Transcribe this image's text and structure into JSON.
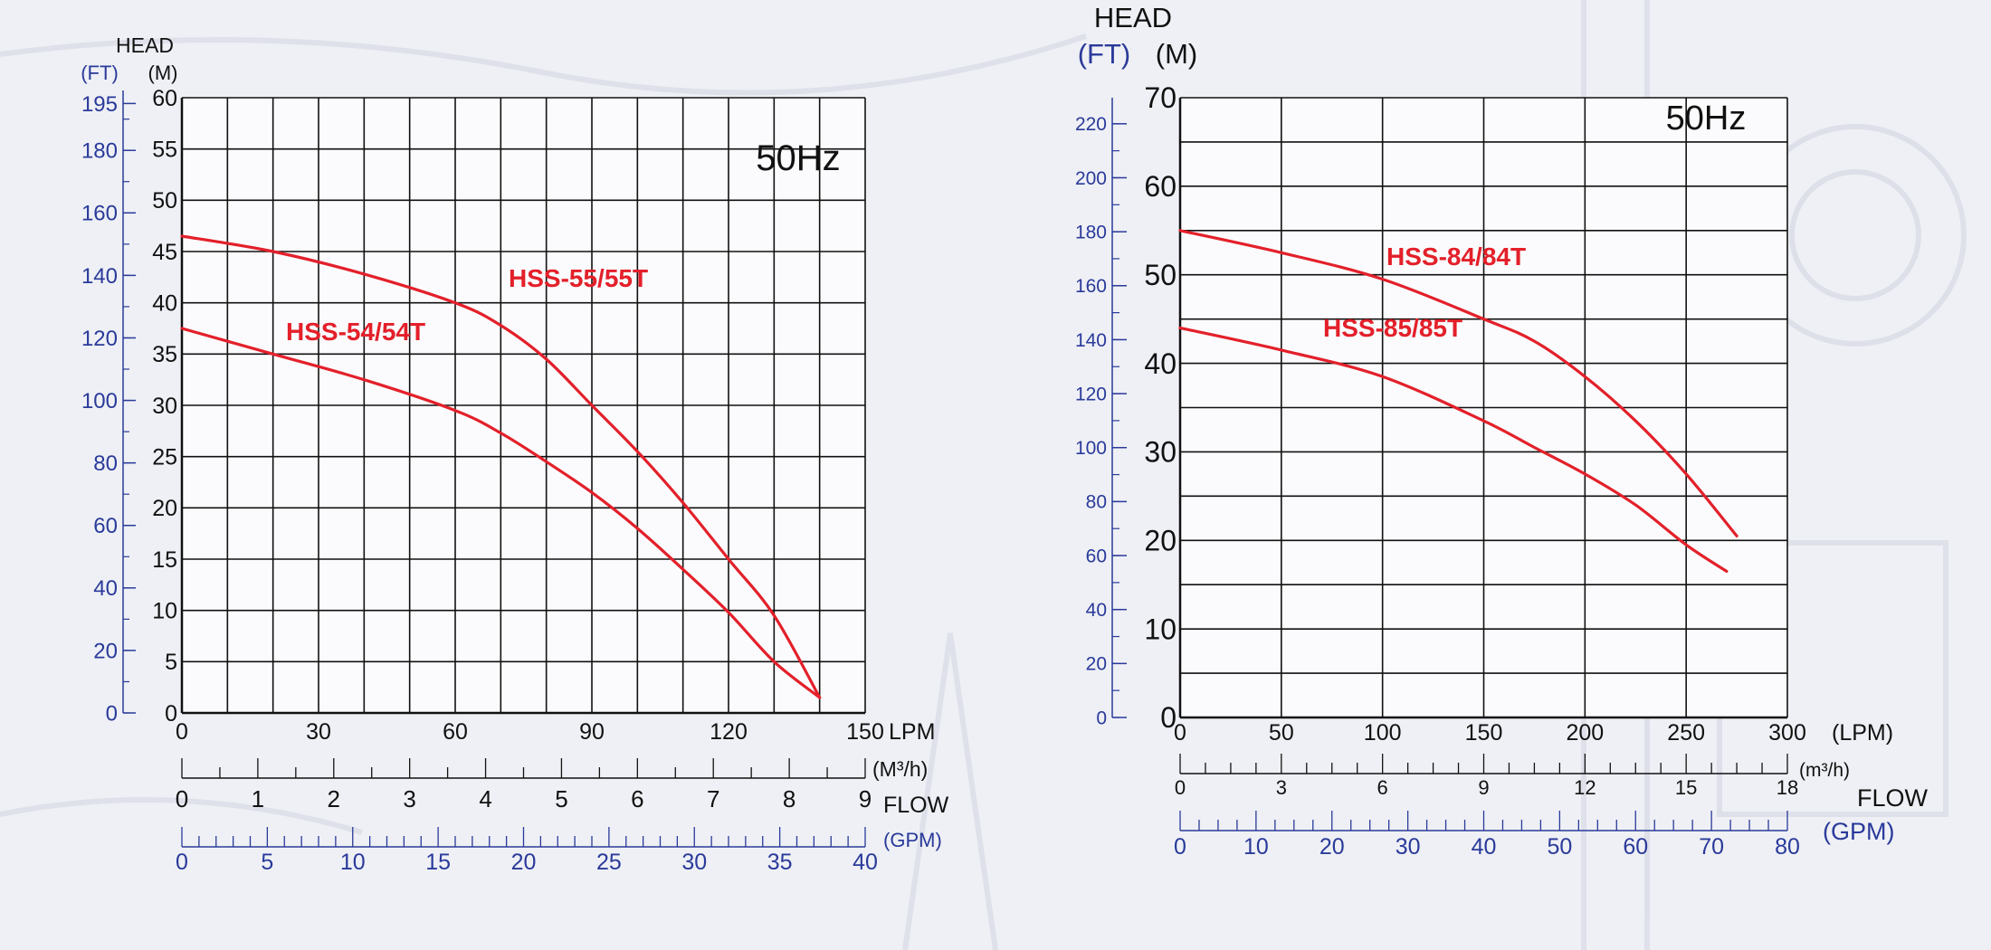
{
  "colors": {
    "curve": "#e3202a",
    "blue_axis": "#2a3a9a",
    "black_axis": "#111111",
    "background": "#eef0f5"
  },
  "chart_data": [
    {
      "type": "line",
      "frequency_label": "50Hz",
      "head_title": "HEAD",
      "ft_unit": "(FT)",
      "m_unit": "(M)",
      "flow_title": "FLOW",
      "x_unit_lpm": "LPM",
      "x_unit_m3h": "(M³/h)",
      "x_unit_gpm": "(GPM)",
      "xlim_lpm": [
        0,
        150
      ],
      "ylim_m": [
        0,
        60
      ],
      "grid": true,
      "m_ticks": [
        "0",
        "5",
        "10",
        "15",
        "20",
        "25",
        "30",
        "35",
        "40",
        "45",
        "50",
        "55",
        "60"
      ],
      "ft_ticks": [
        "0",
        "20",
        "40",
        "60",
        "80",
        "100",
        "120",
        "140",
        "160",
        "180",
        "195"
      ],
      "lpm_ticks": [
        "0",
        "30",
        "60",
        "90",
        "120",
        "150"
      ],
      "m3h_ticks": [
        "0",
        "1",
        "2",
        "3",
        "4",
        "5",
        "6",
        "7",
        "8",
        "9"
      ],
      "gpm_ticks": [
        "0",
        "5",
        "10",
        "15",
        "20",
        "25",
        "30",
        "35",
        "40"
      ],
      "series": [
        {
          "name": "HSS-54/54T",
          "x": [
            0,
            20,
            40,
            60,
            70,
            80,
            90,
            100,
            110,
            120,
            130,
            140
          ],
          "y": [
            37.5,
            35,
            32.5,
            29.5,
            27.3,
            24.5,
            21.5,
            18,
            14,
            9.8,
            5,
            1.5
          ]
        },
        {
          "name": "HSS-55/55T",
          "x": [
            0,
            20,
            40,
            60,
            70,
            80,
            90,
            100,
            110,
            120,
            130,
            140
          ],
          "y": [
            46.5,
            45,
            42.8,
            40,
            37.8,
            34.5,
            30,
            25.5,
            20.5,
            15,
            9.5,
            1.5
          ]
        }
      ]
    },
    {
      "type": "line",
      "frequency_label": "50Hz",
      "head_title": "HEAD",
      "ft_unit": "(FT)",
      "m_unit": "(M)",
      "flow_title": "FLOW",
      "x_unit_lpm": "(LPM)",
      "x_unit_m3h": "(m³/h)",
      "x_unit_gpm": "(GPM)",
      "xlim_lpm": [
        0,
        300
      ],
      "ylim_m": [
        0,
        70
      ],
      "grid": true,
      "m_ticks": [
        "0",
        "10",
        "20",
        "30",
        "40",
        "50",
        "60",
        "70"
      ],
      "ft_ticks": [
        "0",
        "20",
        "40",
        "60",
        "80",
        "100",
        "120",
        "140",
        "160",
        "180",
        "200",
        "220"
      ],
      "lpm_ticks": [
        "0",
        "50",
        "100",
        "150",
        "200",
        "250",
        "300"
      ],
      "m3h_ticks": [
        "0",
        "3",
        "6",
        "9",
        "12",
        "15",
        "18"
      ],
      "gpm_ticks": [
        "0",
        "10",
        "20",
        "30",
        "40",
        "50",
        "60",
        "70",
        "80"
      ],
      "series": [
        {
          "name": "HSS-85/85T",
          "x": [
            0,
            50,
            100,
            150,
            175,
            200,
            225,
            250,
            275
          ],
          "y": [
            55,
            52.5,
            49.5,
            45,
            42.5,
            38.5,
            33.5,
            27.5,
            20.5
          ]
        },
        {
          "name": "HSS-84/84T",
          "x": [
            0,
            50,
            100,
            150,
            175,
            200,
            225,
            250,
            270
          ],
          "y": [
            44,
            41.5,
            38.5,
            33.5,
            30.5,
            27.5,
            24,
            19.5,
            16.5
          ]
        }
      ]
    }
  ]
}
